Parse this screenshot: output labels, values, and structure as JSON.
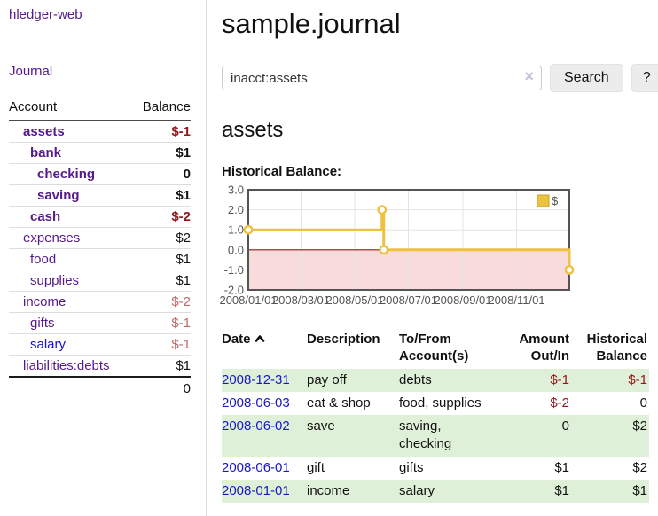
{
  "app": {
    "brand": "hledger-web"
  },
  "colors": {
    "link_purple": "#551a8b",
    "link_blue": "#1717c9",
    "negative_strong": "#94161a",
    "negative_light": "#bd6a6a",
    "row_stripe_green": "#dff0d8",
    "series_gold": "#edc240"
  },
  "sidebar": {
    "journal_label": "Journal",
    "accounts": {
      "headers": [
        "Account",
        "Balance"
      ],
      "rows": [
        {
          "account": "assets",
          "balance": "$-1",
          "depth": 1,
          "bold": true,
          "variant": "purple"
        },
        {
          "account": "bank",
          "balance": "$1",
          "depth": 2,
          "bold": true,
          "variant": "purple"
        },
        {
          "account": "checking",
          "balance": "0",
          "depth": 3,
          "bold": true,
          "variant": "purple"
        },
        {
          "account": "saving",
          "balance": "$1",
          "depth": 3,
          "bold": true,
          "variant": "purple"
        },
        {
          "account": "cash",
          "balance": "$-2",
          "depth": 2,
          "bold": true,
          "variant": "purple"
        },
        {
          "account": "expenses",
          "balance": "$2",
          "depth": 1,
          "bold": false,
          "variant": "purple"
        },
        {
          "account": "food",
          "balance": "$1",
          "depth": 2,
          "bold": false,
          "variant": "purple"
        },
        {
          "account": "supplies",
          "balance": "$1",
          "depth": 2,
          "bold": false,
          "variant": "purple"
        },
        {
          "account": "income",
          "balance": "$-2",
          "depth": 1,
          "bold": false,
          "variant": "purple"
        },
        {
          "account": "gifts",
          "balance": "$-1",
          "depth": 2,
          "bold": false,
          "variant": "purple"
        },
        {
          "account": "salary",
          "balance": "$-1",
          "depth": 2,
          "bold": false,
          "variant": "blue"
        },
        {
          "account": "liabilities:debts",
          "balance": "$1",
          "depth": 1,
          "bold": false,
          "variant": "purple"
        }
      ],
      "total": "0"
    }
  },
  "main": {
    "title": "sample.journal",
    "search": {
      "value": "inacct:assets",
      "clear_icon": "×",
      "button_label": "Search",
      "help_label": "?"
    },
    "account_heading": "assets",
    "chart_label": "Historical Balance:"
  },
  "chart_data": {
    "type": "line",
    "step": true,
    "title": "Historical Balance:",
    "x_range": [
      "2008-01-01",
      "2008-12-31"
    ],
    "ylim": [
      -2,
      3
    ],
    "yticks": [
      3,
      2,
      1,
      0,
      -1,
      -2
    ],
    "xticks": [
      "2008/01/01",
      "2008/03/01",
      "2008/05/01",
      "2008/07/01",
      "2008/09/01",
      "2008/11/01"
    ],
    "series": [
      {
        "name": "$",
        "color": "#edc240",
        "points": [
          [
            "2008-01-01",
            1
          ],
          [
            "2008-06-01",
            2
          ],
          [
            "2008-06-03",
            0
          ],
          [
            "2008-12-31",
            -1
          ]
        ]
      }
    ],
    "legend_position": "top-right",
    "grid": true,
    "grid_color": "#e4e4e4",
    "negative_region_fill": "#f9dbdb",
    "zero_line_color": "#8b1a1a",
    "border_color": "#545454",
    "tick_label_color": "#545454"
  },
  "register": {
    "sort": {
      "column": "date",
      "direction": "ascending"
    },
    "headers": {
      "date": "Date",
      "description": "Description",
      "accounts": "To/From Account(s)",
      "amount": "Amount Out/In",
      "balance": "Historical Balance"
    },
    "rows": [
      {
        "date": "2008-12-31",
        "description": "pay off",
        "accounts": "debts",
        "amount": "$-1",
        "balance": "$-1"
      },
      {
        "date": "2008-06-03",
        "description": "eat & shop",
        "accounts": "food, supplies",
        "amount": "$-2",
        "balance": "0"
      },
      {
        "date": "2008-06-02",
        "description": "save",
        "accounts": "saving, checking",
        "amount": "0",
        "balance": "$2"
      },
      {
        "date": "2008-06-01",
        "description": "gift",
        "accounts": "gifts",
        "amount": "$1",
        "balance": "$2"
      },
      {
        "date": "2008-01-01",
        "description": "income",
        "accounts": "salary",
        "amount": "$1",
        "balance": "$1"
      }
    ]
  }
}
